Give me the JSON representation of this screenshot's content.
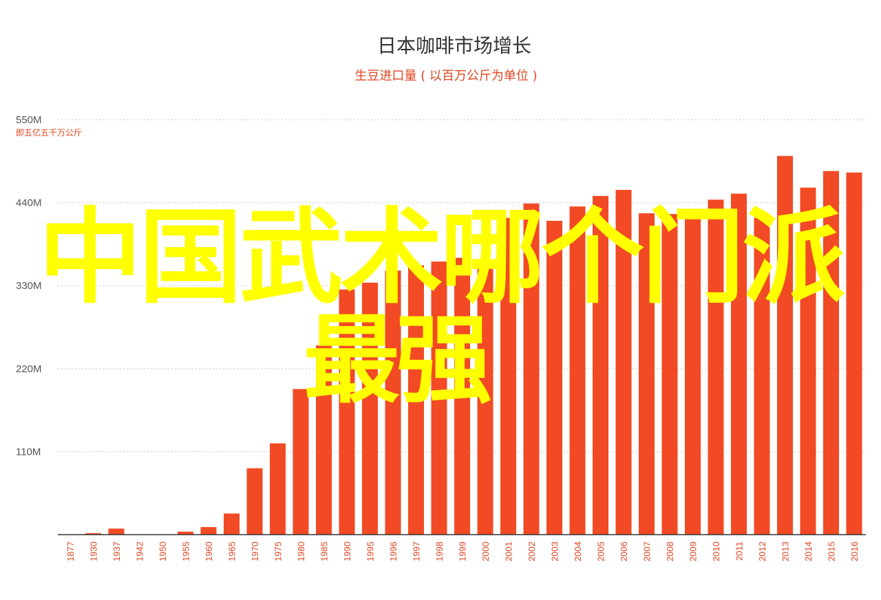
{
  "chart_data": {
    "type": "bar",
    "title": "日本咖啡市场增长",
    "subtitle": "生豆进口量 ( 以百万公斤为单位 )",
    "y_unit_note": "即五亿五千万公斤",
    "y_ticks": [
      "550M",
      "440M",
      "330M",
      "220M",
      "110M"
    ],
    "ylim": [
      0,
      550
    ],
    "grid": true,
    "bar_color": "#f24a24",
    "categories": [
      "1877",
      "1930",
      "1937",
      "1942",
      "1950",
      "1955",
      "1960",
      "1965",
      "1970",
      "1975",
      "1980",
      "1985",
      "1990",
      "1995",
      "1996",
      "1997",
      "1998",
      "1999",
      "2000",
      "2001",
      "2002",
      "2003",
      "2004",
      "2005",
      "2006",
      "2007",
      "2008",
      "2009",
      "2010",
      "2011",
      "2012",
      "2013",
      "2014",
      "2015",
      "2016"
    ],
    "values": [
      0,
      2,
      8,
      0,
      0,
      4,
      10,
      28,
      88,
      121,
      193,
      251,
      325,
      334,
      350,
      357,
      362,
      367,
      361,
      420,
      439,
      416,
      435,
      449,
      457,
      426,
      425,
      426,
      444,
      452,
      420,
      502,
      460,
      482,
      480
    ]
  },
  "overlay_text": {
    "line1": "中国武术哪个门派",
    "line2": "最强",
    "color": "#ffff00"
  }
}
